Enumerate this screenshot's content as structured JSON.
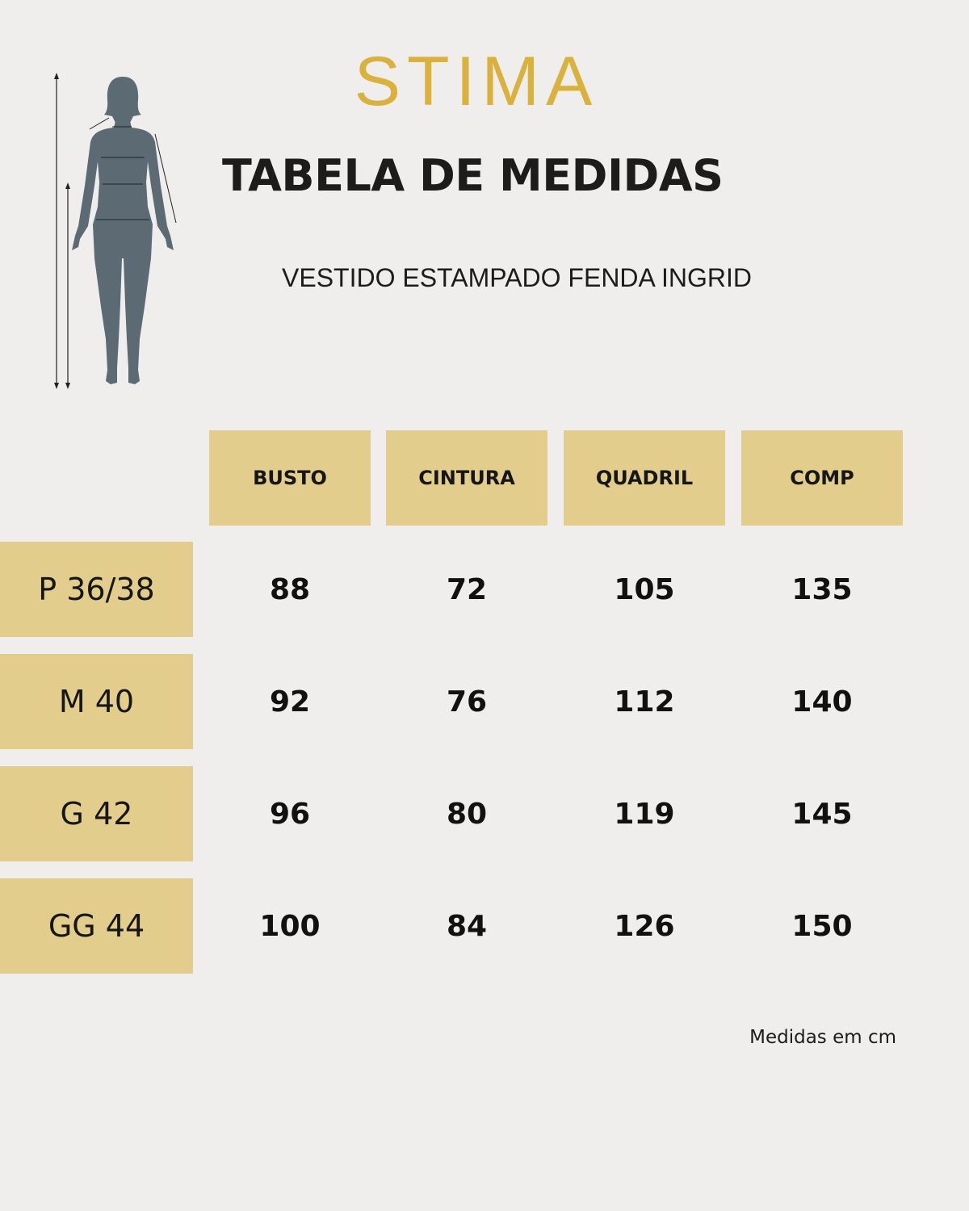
{
  "brand": "STIMA",
  "title": "TABELA DE MEDIDAS",
  "subtitle": "VESTIDO ESTAMPADO FENDA INGRID",
  "columns": [
    "BUSTO",
    "CINTURA",
    "QUADRIL",
    "COMP"
  ],
  "rows": [
    {
      "size": "P 36/38",
      "values": [
        "88",
        "72",
        "105",
        "135"
      ]
    },
    {
      "size": "M 40",
      "values": [
        "92",
        "76",
        "112",
        "140"
      ]
    },
    {
      "size": "G 42",
      "values": [
        "96",
        "80",
        "119",
        "145"
      ]
    },
    {
      "size": "GG 44",
      "values": [
        "100",
        "84",
        "126",
        "150"
      ]
    }
  ],
  "note": "Medidas em cm",
  "colors": {
    "gold": "#d9b13d",
    "cell": "#e2cd8d",
    "background": "#efeeed",
    "figure": "#5b6a73"
  },
  "icons": {
    "figure": "body-measurement-figure-icon"
  }
}
